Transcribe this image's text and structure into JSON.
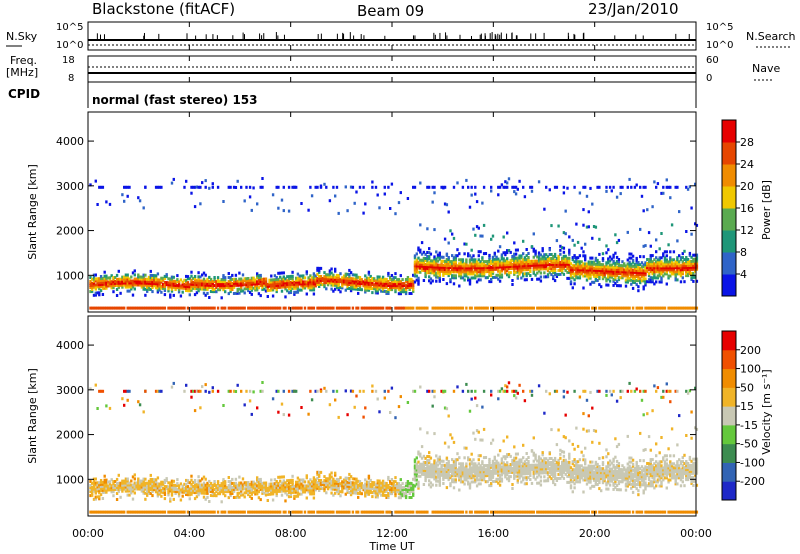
{
  "header": {
    "station": "Blackstone (fitACF)",
    "beam": "Beam 09",
    "date": "23/Jan/2010"
  },
  "status_panels": {
    "nsky_label": "N.Sky",
    "nsky_ticks": [
      "10^5",
      "10^0"
    ],
    "nsky_right_ticks": [
      "10^5",
      "10^0"
    ],
    "nsearch_label": "N.Search",
    "freq_label_line1": "Freq.",
    "freq_label_line2": "[MHz]",
    "freq_ticks": [
      "18",
      "8"
    ],
    "nave_label": "Nave",
    "nave_ticks": [
      "60",
      "0"
    ],
    "cpid_label": "CPID",
    "cpid_text": "normal (fast stereo) 153"
  },
  "chart_data": [
    {
      "type": "heatmap",
      "name": "power",
      "ylabel": "Slant Range [km]",
      "yticks": [
        1000,
        2000,
        3000,
        4000
      ],
      "ylim": [
        180,
        4650
      ],
      "xlim_hours": [
        0,
        24
      ],
      "colorbar": {
        "label": "Power [dB]",
        "ticks": [
          "4",
          "8",
          "12",
          "16",
          "20",
          "24",
          "28"
        ],
        "colors": [
          "#0a14e6",
          "#2f64c8",
          "#1e9678",
          "#5aaa50",
          "#f0c800",
          "#f08c00",
          "#e64600",
          "#e60000"
        ]
      }
    },
    {
      "type": "heatmap",
      "name": "velocity",
      "ylabel": "Slant Range [km]",
      "yticks": [
        1000,
        2000,
        3000,
        4000
      ],
      "ylim": [
        180,
        4650
      ],
      "xlim_hours": [
        0,
        24
      ],
      "xticks": [
        "00:00",
        "04:00",
        "08:00",
        "12:00",
        "16:00",
        "20:00",
        "00:00"
      ],
      "xlabel": "Time UT",
      "colorbar": {
        "label": "Velocity [m s⁻¹]",
        "ticks": [
          "200",
          "100",
          "50",
          "15",
          "-15",
          "-50",
          "-100",
          "-200"
        ],
        "colors": [
          "#1e28c8",
          "#3264b4",
          "#3c8c50",
          "#64c83c",
          "#c8c8b4",
          "#f0b428",
          "#f08c00",
          "#f05000",
          "#e60000"
        ]
      }
    }
  ]
}
